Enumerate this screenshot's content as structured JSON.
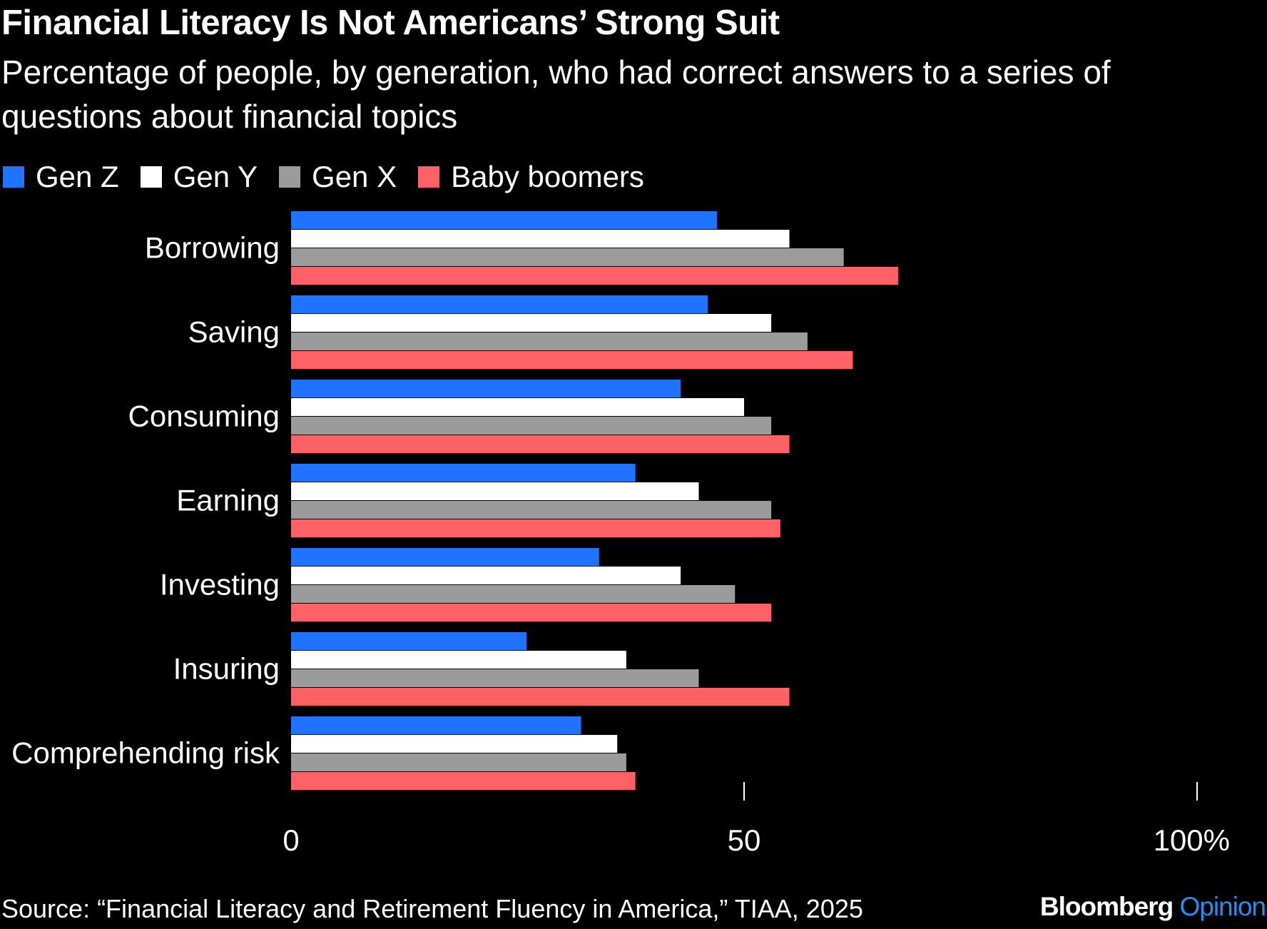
{
  "title": "Financial Literacy Is Not Americans’ Strong Suit",
  "subtitle": "Percentage of people, by generation, who had correct answers to a series of questions about financial topics",
  "source": "Source: “Financial Literacy and Retirement Fluency in America,” TIAA, 2025",
  "brand": {
    "name": "Bloomberg",
    "accent": "Opinion"
  },
  "colors": {
    "Gen Z": "#1f73ff",
    "Gen Y": "#ffffff",
    "Gen X": "#9b9b9b",
    "Baby boomers": "#ff6266"
  },
  "chart_data": {
    "type": "bar",
    "orientation": "horizontal",
    "categories": [
      "Borrowing",
      "Saving",
      "Consuming",
      "Earning",
      "Investing",
      "Insuring",
      "Comprehending risk"
    ],
    "series": [
      {
        "name": "Gen Z",
        "values": [
          47,
          46,
          43,
          38,
          34,
          26,
          32
        ]
      },
      {
        "name": "Gen Y",
        "values": [
          55,
          53,
          50,
          45,
          43,
          37,
          36
        ]
      },
      {
        "name": "Gen X",
        "values": [
          61,
          57,
          53,
          53,
          49,
          45,
          37
        ]
      },
      {
        "name": "Baby boomers",
        "values": [
          67,
          62,
          55,
          54,
          53,
          55,
          38
        ]
      }
    ],
    "xlim": [
      0,
      100
    ],
    "xticks": [
      0,
      50,
      100
    ],
    "xtick_labels": [
      "0",
      "50",
      "100%"
    ],
    "legend": "top-left",
    "grid": false
  }
}
